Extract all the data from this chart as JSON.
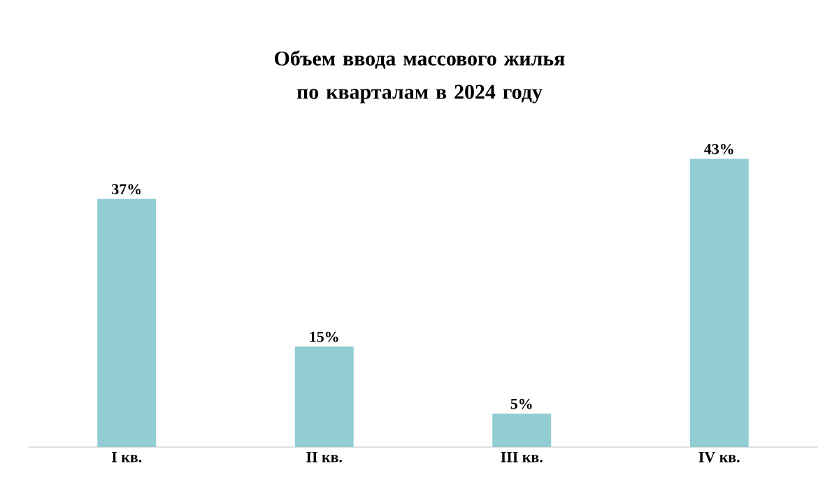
{
  "chart_data": {
    "type": "bar",
    "title": "Объем ввода массового жилья по кварталам в 2024 году",
    "categories": [
      "I кв.",
      "II кв.",
      "III кв.",
      "IV кв."
    ],
    "values": [
      37,
      15,
      5,
      43
    ],
    "value_labels": [
      "37%",
      "15%",
      "5%",
      "43%"
    ],
    "color": "#92cdd4"
  }
}
